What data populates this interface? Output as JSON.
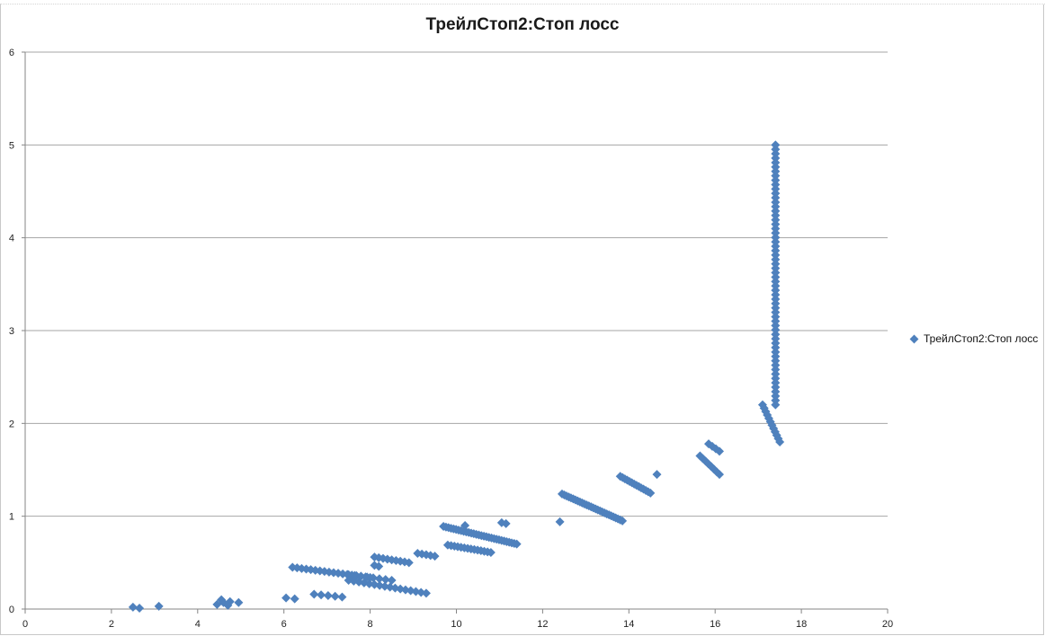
{
  "chart_data": {
    "type": "scatter",
    "title": "ТрейлСтоп2:Стоп лосс",
    "xlabel": "",
    "ylabel": "",
    "xlim": [
      0,
      20
    ],
    "ylim": [
      0,
      6
    ],
    "x_ticks": [
      "0",
      "2",
      "4",
      "6",
      "8",
      "10",
      "12",
      "14",
      "16",
      "18",
      "20"
    ],
    "y_ticks": [
      "0",
      "1",
      "2",
      "3",
      "4",
      "5",
      "6"
    ],
    "grid": "horizontal",
    "legend_position": "right",
    "colors": {
      "series": "#4f81bd",
      "grid": "#a6a6a6",
      "axis": "#868686"
    },
    "series": [
      {
        "name": "ТрейлСтоп2:Стоп лосс",
        "marker": "diamond",
        "segments": [
          {
            "x0": 17.4,
            "y0": 2.2,
            "x1": 17.4,
            "y1": 5.0,
            "n": 60
          },
          {
            "x0": 17.1,
            "y0": 2.2,
            "x1": 17.5,
            "y1": 1.8,
            "n": 12
          },
          {
            "x0": 15.85,
            "y0": 1.78,
            "x1": 16.1,
            "y1": 1.7,
            "n": 4
          },
          {
            "x0": 15.65,
            "y0": 1.65,
            "x1": 16.1,
            "y1": 1.45,
            "n": 8
          },
          {
            "x0": 13.8,
            "y0": 1.43,
            "x1": 14.5,
            "y1": 1.25,
            "n": 14
          },
          {
            "x0": 12.45,
            "y0": 1.24,
            "x1": 13.85,
            "y1": 0.95,
            "n": 28
          },
          {
            "x0": 9.7,
            "y0": 0.89,
            "x1": 11.4,
            "y1": 0.7,
            "n": 30
          },
          {
            "x0": 9.8,
            "y0": 0.69,
            "x1": 10.8,
            "y1": 0.61,
            "n": 14
          },
          {
            "x0": 6.2,
            "y0": 0.45,
            "x1": 8.0,
            "y1": 0.34,
            "n": 18
          },
          {
            "x0": 7.5,
            "y0": 0.37,
            "x1": 8.5,
            "y1": 0.31,
            "n": 8
          },
          {
            "x0": 8.1,
            "y0": 0.56,
            "x1": 8.9,
            "y1": 0.5,
            "n": 9
          },
          {
            "x0": 9.1,
            "y0": 0.6,
            "x1": 9.5,
            "y1": 0.57,
            "n": 5
          },
          {
            "x0": 7.5,
            "y0": 0.31,
            "x1": 9.3,
            "y1": 0.17,
            "n": 16
          },
          {
            "x0": 6.7,
            "y0": 0.16,
            "x1": 7.35,
            "y1": 0.13,
            "n": 5
          }
        ],
        "points": [
          [
            2.5,
            0.02
          ],
          [
            2.65,
            0.01
          ],
          [
            3.1,
            0.03
          ],
          [
            4.45,
            0.05
          ],
          [
            4.55,
            0.1
          ],
          [
            4.6,
            0.07
          ],
          [
            4.7,
            0.04
          ],
          [
            4.75,
            0.08
          ],
          [
            4.95,
            0.07
          ],
          [
            6.05,
            0.12
          ],
          [
            6.25,
            0.11
          ],
          [
            8.1,
            0.47
          ],
          [
            8.2,
            0.46
          ],
          [
            10.2,
            0.9
          ],
          [
            11.05,
            0.93
          ],
          [
            11.15,
            0.92
          ],
          [
            12.4,
            0.94
          ],
          [
            14.65,
            1.45
          ]
        ]
      }
    ]
  }
}
